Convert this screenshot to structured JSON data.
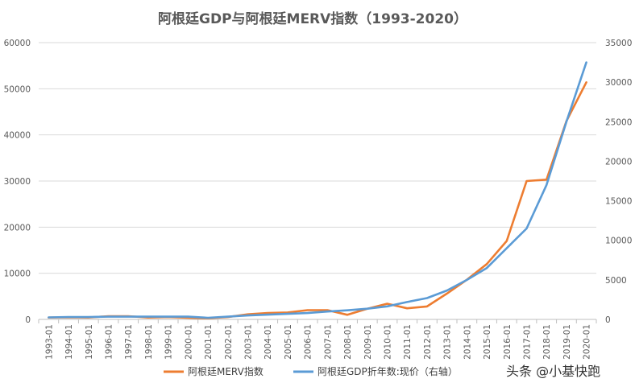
{
  "chart_data": {
    "type": "line",
    "title": "阿根廷GDP与阿根廷MERV指数（1993-2020）",
    "categories": [
      "1993-01",
      "1994-01",
      "1995-01",
      "1996-01",
      "1997-01",
      "1998-01",
      "1999-01",
      "2000-01",
      "2001-01",
      "2002-01",
      "2003-01",
      "2004-01",
      "2005-01",
      "2006-01",
      "2007-01",
      "2008-01",
      "2009-01",
      "2010-01",
      "2011-01",
      "2012-01",
      "2013-01",
      "2014-01",
      "2015-01",
      "2016-01",
      "2017-01",
      "2018-01",
      "2019-01",
      "2020-01"
    ],
    "y_left_ticks": [
      "0",
      "10000",
      "20000",
      "30000",
      "40000",
      "50000",
      "60000"
    ],
    "y_right_ticks": [
      "0",
      "5000",
      "10000",
      "15000",
      "20000",
      "25000",
      "30000",
      "35000"
    ],
    "ylim_left": [
      0,
      60000
    ],
    "ylim_right": [
      0,
      35000
    ],
    "series": [
      {
        "name": "阿根廷MERV指数",
        "axis": "left",
        "color": "#ED7D31",
        "values": [
          400,
          450,
          400,
          700,
          700,
          400,
          500,
          350,
          250,
          500,
          1100,
          1400,
          1500,
          2000,
          2000,
          1000,
          2300,
          3400,
          2400,
          2800,
          5600,
          8600,
          12000,
          17000,
          30000,
          30300,
          43000,
          51400
        ]
      },
      {
        "name": "阿根廷GDP折年数:现价（右轴）",
        "axis": "right",
        "color": "#5B9BD5",
        "values": [
          250,
          300,
          300,
          350,
          350,
          350,
          350,
          350,
          200,
          350,
          500,
          600,
          700,
          800,
          1000,
          1150,
          1350,
          1650,
          2200,
          2700,
          3650,
          5000,
          6500,
          9000,
          11500,
          17000,
          25000,
          32500
        ]
      }
    ],
    "legend_position": "bottom",
    "grid": true
  },
  "watermark": "头条 @小基快跑"
}
